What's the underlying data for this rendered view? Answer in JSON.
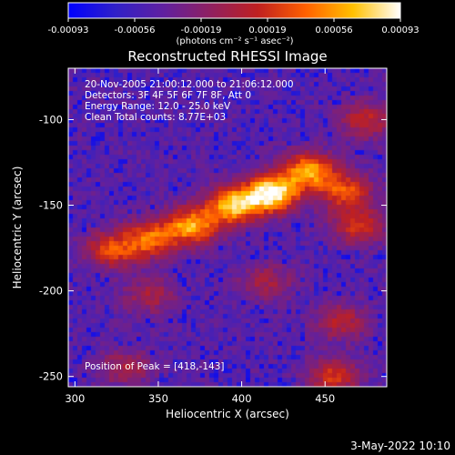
{
  "chart_data": {
    "type": "heatmap",
    "title": "Reconstructed RHESSI Image",
    "xlabel": "Heliocentric X (arcsec)",
    "ylabel": "Heliocentric Y (arcsec)",
    "xlim": [
      296,
      487
    ],
    "ylim": [
      -256,
      -70
    ],
    "x_ticks": [
      300,
      350,
      400,
      450
    ],
    "y_ticks": [
      -250,
      -200,
      -150,
      -100
    ],
    "colorbar": {
      "min": -0.00093,
      "max": 0.00093,
      "ticks": [
        "-0.00093",
        "-0.00056",
        "-0.00019",
        "0.00019",
        "0.00056",
        "0.00093"
      ],
      "unit_label": "(photons cm⁻² s⁻¹ asec⁻²)",
      "colormap": [
        "#0000ff",
        "#3020c8",
        "#6020a0",
        "#902060",
        "#c02020",
        "#ff6000",
        "#ffc000",
        "#ffffff"
      ]
    },
    "annotations": [
      "20-Nov-2005 21:00:12.000 to 21:06:12.000",
      "Detectors: 3F 4F 5F 6F 7F 8F, Att 0",
      "Energy Range: 12.0 - 25.0 keV",
      "Clean     Total counts: 8.77E+03"
    ],
    "peak_label": "Position of Peak = [418,-143]",
    "peak": [
      418,
      -143
    ],
    "emission_sources": [
      {
        "x": 418,
        "y": -143,
        "peak": 1.0
      },
      {
        "x": 395,
        "y": -150,
        "peak": 0.85
      },
      {
        "x": 370,
        "y": -162,
        "peak": 0.75
      },
      {
        "x": 345,
        "y": -170,
        "peak": 0.6
      },
      {
        "x": 322,
        "y": -176,
        "peak": 0.5
      },
      {
        "x": 440,
        "y": -130,
        "peak": 0.75
      },
      {
        "x": 462,
        "y": -142,
        "peak": 0.55
      },
      {
        "x": 470,
        "y": -162,
        "peak": 0.45
      },
      {
        "x": 475,
        "y": -100,
        "peak": 0.4
      },
      {
        "x": 460,
        "y": -218,
        "peak": 0.35
      },
      {
        "x": 455,
        "y": -250,
        "peak": 0.45
      },
      {
        "x": 330,
        "y": -245,
        "peak": 0.3
      },
      {
        "x": 345,
        "y": -203,
        "peak": 0.3
      },
      {
        "x": 415,
        "y": -195,
        "peak": 0.3
      }
    ]
  },
  "footer": {
    "timestamp": "3-May-2022 10:10"
  }
}
